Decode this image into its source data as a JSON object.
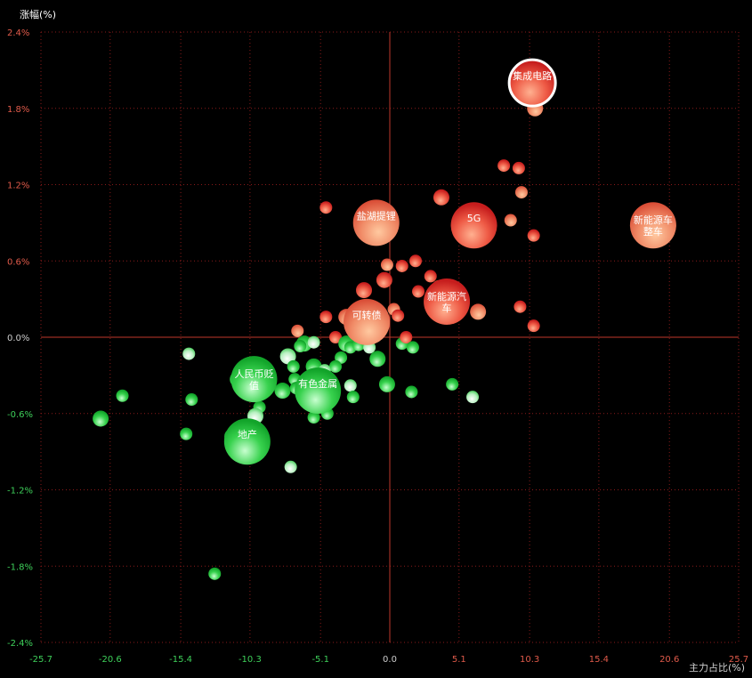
{
  "chart_data": {
    "type": "scatter",
    "subtype": "bubble",
    "title": "",
    "ylabel": "涨幅(%)",
    "xlabel": "主力占比(%)",
    "xlim": [
      -25.7,
      25.7
    ],
    "ylim": [
      -2.4,
      2.4
    ],
    "x_ticks": [
      "-25.7",
      "-20.6",
      "-15.4",
      "-10.3",
      "-5.1",
      "0.0",
      "5.1",
      "10.3",
      "15.4",
      "20.6",
      "25.7"
    ],
    "x_tick_values": [
      -25.7,
      -20.6,
      -15.4,
      -10.3,
      -5.1,
      0.0,
      5.1,
      10.3,
      15.4,
      20.6,
      25.7
    ],
    "y_ticks": [
      "2.4%",
      "1.8%",
      "1.2%",
      "0.6%",
      "0.0%",
      "-0.6%",
      "-1.2%",
      "-1.8%",
      "-2.4%"
    ],
    "y_tick_values": [
      2.4,
      1.8,
      1.2,
      0.6,
      0.0,
      -0.6,
      -1.2,
      -1.8,
      -2.4
    ],
    "grid": true,
    "colors": {
      "background": "#000000",
      "grid": "#8a1a1a",
      "axis_zero": "#c0392b",
      "up": "#e23b2e",
      "down": "#1fc83a",
      "tick_up": "#e05a4a",
      "tick_down": "#3ed05a"
    },
    "labeled_bubbles": [
      {
        "label": "集成电路",
        "x": 10.5,
        "y": 2.0,
        "size": "large",
        "highlight": true
      },
      {
        "label": "盐湖提锂",
        "x": -1.0,
        "y": 0.9,
        "size": "large"
      },
      {
        "label": "5G",
        "x": 6.2,
        "y": 0.88,
        "size": "large"
      },
      {
        "label": "新能源车",
        "label_line2": "整车",
        "x": 19.4,
        "y": 0.88,
        "size": "large"
      },
      {
        "label": "新能源汽",
        "label_line2": "车",
        "x": 4.2,
        "y": 0.28,
        "size": "large"
      },
      {
        "label": "可转债",
        "x": -1.7,
        "y": 0.12,
        "size": "large"
      },
      {
        "label": "人民币贬",
        "label_line2": "值",
        "x": -10.0,
        "y": -0.33,
        "size": "large"
      },
      {
        "label": "有色金属",
        "x": -5.3,
        "y": -0.42,
        "size": "large"
      },
      {
        "label": "地产",
        "x": -10.5,
        "y": -0.82,
        "size": "large"
      }
    ],
    "points": [
      {
        "x": 10.7,
        "y": 1.8
      },
      {
        "x": 8.4,
        "y": 1.35
      },
      {
        "x": 9.5,
        "y": 1.33
      },
      {
        "x": 9.7,
        "y": 1.14
      },
      {
        "x": 3.8,
        "y": 1.1
      },
      {
        "x": -4.7,
        "y": 1.02
      },
      {
        "x": 8.9,
        "y": 0.92
      },
      {
        "x": 10.6,
        "y": 0.8
      },
      {
        "x": 7.0,
        "y": 0.82
      },
      {
        "x": 19.6,
        "y": 0.97
      },
      {
        "x": 9.6,
        "y": 0.24
      },
      {
        "x": 10.6,
        "y": 0.09
      },
      {
        "x": 6.5,
        "y": 0.2
      },
      {
        "x": 1.9,
        "y": 0.6
      },
      {
        "x": 0.9,
        "y": 0.56
      },
      {
        "x": -0.2,
        "y": 0.57
      },
      {
        "x": -0.4,
        "y": 0.45
      },
      {
        "x": 3.0,
        "y": 0.48
      },
      {
        "x": 3.6,
        "y": 0.4
      },
      {
        "x": 2.1,
        "y": 0.36
      },
      {
        "x": -1.9,
        "y": 0.37
      },
      {
        "x": 0.3,
        "y": 0.22
      },
      {
        "x": 0.6,
        "y": 0.17
      },
      {
        "x": -4.7,
        "y": 0.16
      },
      {
        "x": -3.2,
        "y": 0.16
      },
      {
        "x": -0.8,
        "y": 0.08
      },
      {
        "x": -1.1,
        "y": 0.02
      },
      {
        "x": -6.8,
        "y": 0.05
      },
      {
        "x": -6.3,
        "y": -0.05
      },
      {
        "x": -6.6,
        "y": -0.07
      },
      {
        "x": -5.6,
        "y": -0.04
      },
      {
        "x": -4.0,
        "y": 0.0
      },
      {
        "x": -3.2,
        "y": -0.05
      },
      {
        "x": -2.9,
        "y": -0.08
      },
      {
        "x": -2.3,
        "y": -0.06
      },
      {
        "x": -1.5,
        "y": -0.08
      },
      {
        "x": -0.9,
        "y": -0.17
      },
      {
        "x": 0.9,
        "y": -0.05
      },
      {
        "x": 1.2,
        "y": 0.0
      },
      {
        "x": 1.7,
        "y": -0.08
      },
      {
        "x": -7.5,
        "y": -0.15
      },
      {
        "x": -7.1,
        "y": -0.23
      },
      {
        "x": -3.6,
        "y": -0.16
      },
      {
        "x": -4.0,
        "y": -0.23
      },
      {
        "x": -5.6,
        "y": -0.23
      },
      {
        "x": -4.8,
        "y": -0.26
      },
      {
        "x": -7.0,
        "y": -0.33
      },
      {
        "x": -6.9,
        "y": -0.4
      },
      {
        "x": -7.9,
        "y": -0.42
      },
      {
        "x": -6.0,
        "y": -0.37
      },
      {
        "x": -2.9,
        "y": -0.38
      },
      {
        "x": -2.7,
        "y": -0.47
      },
      {
        "x": -0.2,
        "y": -0.37
      },
      {
        "x": 4.6,
        "y": -0.37
      },
      {
        "x": 1.6,
        "y": -0.43
      },
      {
        "x": 6.1,
        "y": -0.47
      },
      {
        "x": -11.2,
        "y": -0.33
      },
      {
        "x": -10.8,
        "y": -0.35
      },
      {
        "x": -10.0,
        "y": -0.46
      },
      {
        "x": -9.6,
        "y": -0.55
      },
      {
        "x": -9.9,
        "y": -0.62
      },
      {
        "x": -10.2,
        "y": -0.7
      },
      {
        "x": -4.6,
        "y": -0.6
      },
      {
        "x": -5.6,
        "y": -0.63
      },
      {
        "x": -11.6,
        "y": -0.78
      },
      {
        "x": -14.8,
        "y": -0.13
      },
      {
        "x": -14.6,
        "y": -0.49
      },
      {
        "x": -19.7,
        "y": -0.46
      },
      {
        "x": -21.3,
        "y": -0.64
      },
      {
        "x": -15.0,
        "y": -0.76
      },
      {
        "x": -7.3,
        "y": -1.02
      },
      {
        "x": -12.9,
        "y": -1.86
      }
    ]
  }
}
